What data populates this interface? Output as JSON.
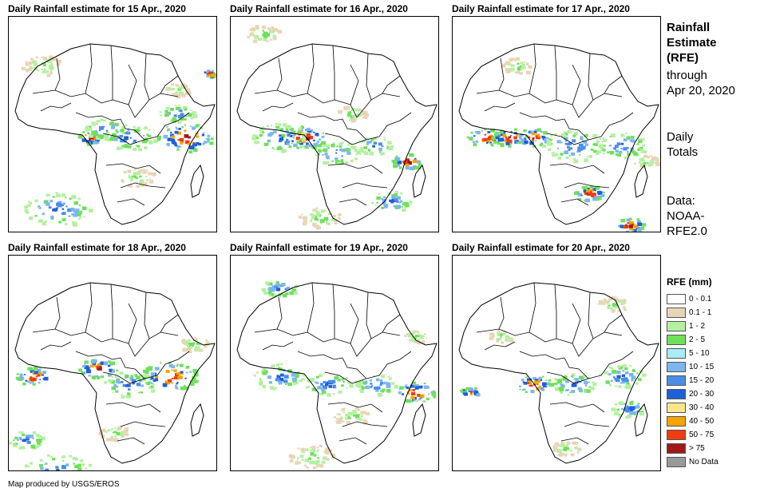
{
  "panels": [
    {
      "title": "Daily Rainfall estimate for 15 Apr., 2020",
      "seed": 15
    },
    {
      "title": "Daily Rainfall estimate for 16 Apr., 2020",
      "seed": 16
    },
    {
      "title": "Daily Rainfall estimate for 17 Apr., 2020",
      "seed": 17
    },
    {
      "title": "Daily Rainfall estimate for 18 Apr., 2020",
      "seed": 18
    },
    {
      "title": "Daily Rainfall estimate for 19 Apr., 2020",
      "seed": 19
    },
    {
      "title": "Daily Rainfall estimate for 20 Apr., 2020",
      "seed": 20
    }
  ],
  "sidebar": {
    "title_line1": "Rainfall",
    "title_line2": "Estimate",
    "title_line3": "(RFE)",
    "through_line1": "through",
    "through_line2": "Apr 20, 2020",
    "totals_line1": "Daily",
    "totals_line2": "Totals",
    "data_line1": "Data:",
    "data_line2": "NOAA-",
    "data_line3": "RFE2.0"
  },
  "legend": {
    "title": "RFE (mm)",
    "items": [
      {
        "label": "0 - 0.1",
        "color": "#ffffff"
      },
      {
        "label": "0.1 - 1",
        "color": "#e8d5b5"
      },
      {
        "label": "1 - 2",
        "color": "#b4f0a0"
      },
      {
        "label": "2 - 5",
        "color": "#6ee05a"
      },
      {
        "label": "5 - 10",
        "color": "#a8ecf5"
      },
      {
        "label": "10 - 15",
        "color": "#7db6ef"
      },
      {
        "label": "15 - 20",
        "color": "#4a8de6"
      },
      {
        "label": "20 - 30",
        "color": "#1f5fd8"
      },
      {
        "label": "30 - 40",
        "color": "#fbe58a"
      },
      {
        "label": "40 - 50",
        "color": "#f5a300"
      },
      {
        "label": "50 - 75",
        "color": "#f03c10"
      },
      {
        "label": "> 75",
        "color": "#a01818"
      },
      {
        "label": "No Data",
        "color": "#999999"
      }
    ]
  },
  "credit": "Map produced by USGS/EROS"
}
